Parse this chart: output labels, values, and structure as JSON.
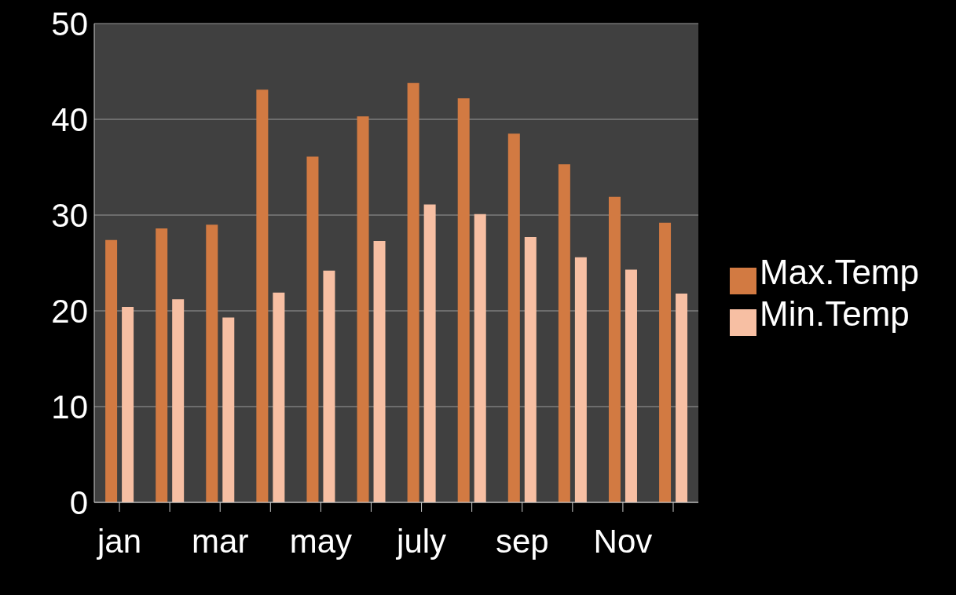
{
  "chart_data": {
    "type": "bar",
    "categories": [
      "jan",
      null,
      "mar",
      null,
      "may",
      null,
      "july",
      null,
      "sep",
      null,
      "Nov",
      null
    ],
    "series": [
      {
        "name": "Max.Temp",
        "color": "#d27a42",
        "values": [
          27.4,
          28.6,
          29.0,
          43.1,
          36.1,
          40.3,
          43.8,
          42.2,
          38.5,
          35.3,
          31.9,
          29.2
        ]
      },
      {
        "name": "Min.Temp",
        "color": "#f7bfa3",
        "values": [
          20.4,
          21.2,
          19.3,
          21.9,
          24.2,
          27.3,
          31.1,
          30.1,
          27.7,
          25.6,
          24.3,
          21.8
        ]
      }
    ],
    "ylim": [
      0,
      50
    ],
    "yticks": [
      0,
      10,
      20,
      30,
      40,
      50
    ],
    "grid": "y",
    "legend": "right"
  }
}
